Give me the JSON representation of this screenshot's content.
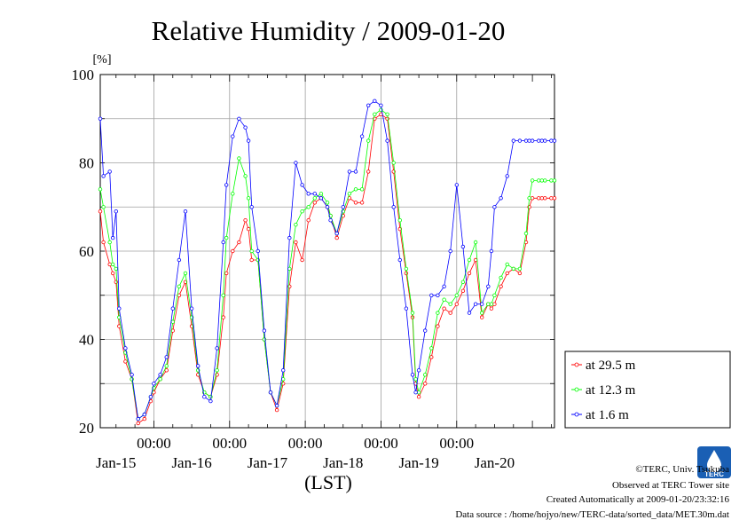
{
  "chart_data": {
    "type": "line",
    "title": "Relative Humidity / 2009-01-20",
    "y_unit": "[%]",
    "xlabel": "(LST)",
    "ylim": [
      20,
      100
    ],
    "y_ticks": [
      20,
      40,
      60,
      80,
      100
    ],
    "x_ticks_time": [
      "00:00",
      "00:00",
      "00:00",
      "00:00",
      "00:00"
    ],
    "x_day_labels": [
      "Jan-15",
      "Jan-16",
      "Jan-17",
      "Jan-18",
      "Jan-19",
      "Jan-20"
    ],
    "x_range_hours": [
      -17,
      127
    ],
    "grid": true,
    "legend_position": "right",
    "series": [
      {
        "name": "at 29.5 m",
        "color": "#ff0000",
        "x": [
          -17,
          -16,
          -14,
          -13,
          -12,
          -11,
          -9,
          -7,
          -5,
          -3,
          -1,
          0,
          2,
          4,
          6,
          8,
          10,
          12,
          14,
          16,
          18,
          20,
          22,
          23,
          25,
          27,
          29,
          30,
          31,
          33,
          35,
          37,
          39,
          41,
          43,
          45,
          47,
          49,
          51,
          53,
          55,
          56,
          58,
          60,
          62,
          64,
          66,
          68,
          70,
          72,
          74,
          76,
          78,
          80,
          82,
          83,
          84,
          86,
          88,
          90,
          92,
          94,
          96,
          98,
          100,
          102,
          104,
          106,
          107,
          108,
          110,
          112,
          114,
          116,
          118,
          119,
          120,
          122,
          123,
          124,
          126,
          127
        ],
        "values": [
          69,
          62,
          57,
          55,
          53,
          43,
          35,
          31,
          21,
          22,
          26,
          28,
          31,
          33,
          42,
          50,
          53,
          43,
          32,
          28,
          27,
          32,
          45,
          55,
          60,
          62,
          67,
          65,
          58,
          58,
          40,
          28,
          24,
          30,
          52,
          62,
          58,
          67,
          71,
          72,
          70,
          68,
          63,
          68,
          72,
          71,
          71,
          78,
          90,
          91,
          90,
          78,
          65,
          55,
          45,
          30,
          27,
          30,
          36,
          43,
          47,
          46,
          48,
          51,
          55,
          58,
          45,
          48,
          47,
          48,
          52,
          55,
          56,
          55,
          62,
          70,
          72,
          72,
          72,
          72,
          72,
          72
        ]
      },
      {
        "name": "at 12.3 m",
        "color": "#00ff00",
        "x": [
          -17,
          -16,
          -14,
          -13,
          -12,
          -11,
          -9,
          -7,
          -5,
          -3,
          -1,
          0,
          2,
          4,
          6,
          8,
          10,
          12,
          14,
          16,
          18,
          20,
          22,
          23,
          25,
          27,
          29,
          30,
          31,
          33,
          35,
          37,
          39,
          41,
          43,
          45,
          47,
          49,
          51,
          53,
          55,
          56,
          58,
          60,
          62,
          64,
          66,
          68,
          70,
          72,
          74,
          76,
          78,
          80,
          82,
          83,
          84,
          86,
          88,
          90,
          92,
          94,
          96,
          98,
          100,
          102,
          104,
          106,
          107,
          108,
          110,
          112,
          114,
          116,
          118,
          119,
          120,
          122,
          123,
          124,
          126,
          127
        ],
        "values": [
          74,
          70,
          62,
          57,
          56,
          45,
          37,
          31,
          22,
          23,
          27,
          29,
          31,
          34,
          44,
          52,
          55,
          45,
          33,
          28,
          27,
          33,
          50,
          63,
          73,
          81,
          77,
          72,
          60,
          58,
          40,
          28,
          25,
          31,
          56,
          66,
          69,
          70,
          72,
          73,
          71,
          68,
          64,
          69,
          73,
          74,
          74,
          85,
          91,
          92,
          91,
          80,
          67,
          56,
          46,
          31,
          28,
          32,
          38,
          46,
          49,
          48,
          50,
          53,
          58,
          62,
          46,
          48,
          48,
          50,
          54,
          57,
          56,
          56,
          64,
          72,
          76,
          76,
          76,
          76,
          76,
          76
        ]
      },
      {
        "name": "at 1.6 m",
        "color": "#0000ff",
        "x": [
          -17,
          -16,
          -14,
          -13,
          -12,
          -11,
          -9,
          -7,
          -5,
          -3,
          -1,
          0,
          2,
          4,
          6,
          8,
          10,
          12,
          14,
          16,
          18,
          20,
          22,
          23,
          25,
          27,
          29,
          30,
          31,
          33,
          35,
          37,
          39,
          41,
          43,
          45,
          47,
          49,
          51,
          53,
          55,
          56,
          58,
          60,
          62,
          64,
          66,
          68,
          70,
          72,
          74,
          76,
          78,
          80,
          82,
          83,
          84,
          86,
          88,
          90,
          92,
          94,
          96,
          98,
          100,
          102,
          104,
          106,
          107,
          108,
          110,
          112,
          114,
          116,
          118,
          119,
          120,
          122,
          123,
          124,
          126,
          127
        ],
        "values": [
          90,
          77,
          78,
          63,
          69,
          47,
          38,
          32,
          22,
          23,
          27,
          30,
          32,
          36,
          47,
          58,
          69,
          47,
          34,
          27,
          26,
          38,
          62,
          75,
          86,
          90,
          88,
          85,
          70,
          60,
          42,
          28,
          25,
          33,
          63,
          80,
          75,
          73,
          73,
          72,
          70,
          67,
          64,
          70,
          78,
          78,
          86,
          93,
          94,
          93,
          85,
          70,
          58,
          47,
          32,
          28,
          33,
          42,
          50,
          50,
          52,
          60,
          75,
          61,
          46,
          48,
          48,
          52,
          60,
          70,
          72,
          77,
          85,
          85,
          85,
          85,
          85,
          85,
          85,
          85,
          85,
          85
        ]
      }
    ]
  },
  "credits": {
    "copyright": "©TERC, Univ. Tsukuba",
    "observed": "Observed at TERC Tower site",
    "created": "Created Automatically at 2009-01-20/23:32:16",
    "source": "Data source : /home/hojyo/new/TERC-data/sorted_data/MET.30m.dat",
    "logo_text": "TERC"
  },
  "colors": {
    "grid": "#a0a0a0",
    "axis": "#000000",
    "logo": "#1a5fb4"
  }
}
